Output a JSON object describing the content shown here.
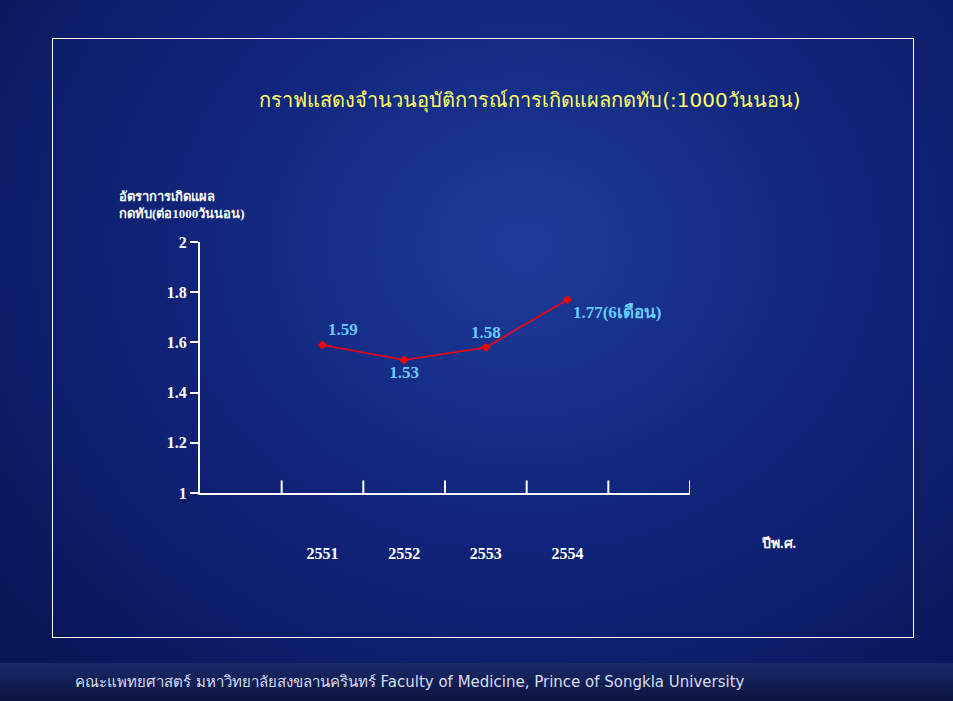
{
  "chart_data": {
    "type": "line",
    "title": "กราฟแสดงจำนวนอุบัติการณ์การเกิดแผลกดทับ(:1000วันนอน)",
    "y_label": [
      "อัตราการเกิดแผล",
      "กดทับ(ต่อ1000วันนอน)"
    ],
    "x_label": "ปีพ.ศ.",
    "categories": [
      "2551",
      "2552",
      "2553",
      "2554"
    ],
    "values": [
      1.59,
      1.53,
      1.58,
      1.77
    ],
    "value_labels": [
      "1.59",
      "1.53",
      "1.58",
      "1.77(6เดือน)"
    ],
    "data_labels": true,
    "color": "#ff0000",
    "marker": "diamond",
    "ylim": [
      1,
      2
    ],
    "yticks": [
      1,
      1.2,
      1.4,
      1.6,
      1.8,
      2
    ],
    "grid": false
  },
  "footer": "คณะแพทยศาสตร์ มหาวิทยาลัยสงขลานครินทร์  Faculty of Medicine, Prince of Songkla University"
}
